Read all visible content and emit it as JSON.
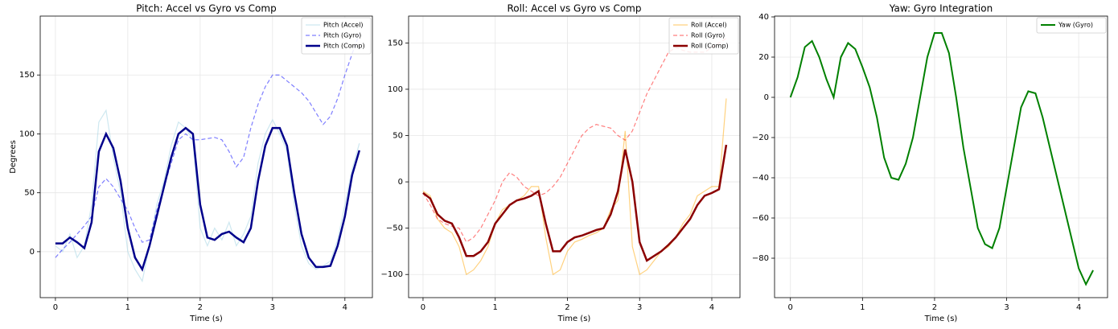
{
  "chart_data": [
    {
      "type": "line",
      "title": "Pitch: Accel vs Gyro vs Comp",
      "xlabel": "Time (s)",
      "ylabel": "Degrees",
      "x": [
        0,
        0.1,
        0.2,
        0.3,
        0.4,
        0.5,
        0.6,
        0.7,
        0.8,
        0.9,
        1.0,
        1.1,
        1.2,
        1.3,
        1.4,
        1.5,
        1.6,
        1.7,
        1.8,
        1.9,
        2.0,
        2.1,
        2.2,
        2.3,
        2.4,
        2.5,
        2.6,
        2.7,
        2.8,
        2.9,
        3.0,
        3.1,
        3.2,
        3.3,
        3.4,
        3.5,
        3.6,
        3.7,
        3.8,
        3.9,
        4.0,
        4.1,
        4.2
      ],
      "series": [
        {
          "name": "Pitch (Accel)",
          "color": "#add8e6",
          "opacity": 0.6,
          "linestyle": "solid",
          "values": [
            5,
            0,
            15,
            -5,
            5,
            40,
            110,
            120,
            80,
            50,
            0,
            -15,
            -25,
            5,
            40,
            60,
            90,
            110,
            105,
            95,
            20,
            5,
            20,
            10,
            25,
            5,
            15,
            30,
            75,
            100,
            112,
            100,
            85,
            40,
            5,
            -10,
            -15,
            -12,
            -8,
            10,
            40,
            70,
            92
          ]
        },
        {
          "name": "Pitch (Gyro)",
          "color": "#0000ff",
          "opacity": 0.5,
          "linestyle": "dashed",
          "values": [
            -5,
            2,
            8,
            15,
            22,
            30,
            55,
            62,
            55,
            45,
            35,
            20,
            8,
            10,
            35,
            55,
            75,
            95,
            100,
            95,
            95,
            96,
            97,
            95,
            85,
            72,
            80,
            105,
            125,
            140,
            150,
            150,
            145,
            140,
            135,
            128,
            118,
            108,
            115,
            130,
            150,
            168,
            185
          ]
        },
        {
          "name": "Pitch (Comp)",
          "color": "#00008b",
          "opacity": 1,
          "linestyle": "solid",
          "values": [
            7,
            7,
            12,
            8,
            3,
            25,
            85,
            100,
            88,
            60,
            20,
            -5,
            -15,
            5,
            30,
            55,
            80,
            100,
            105,
            100,
            40,
            12,
            10,
            15,
            17,
            12,
            8,
            20,
            60,
            90,
            105,
            105,
            90,
            50,
            15,
            -5,
            -13,
            -13,
            -12,
            5,
            30,
            65,
            86
          ]
        }
      ],
      "xlim": [
        -0.21,
        4.38
      ],
      "xticks": [
        0,
        1,
        2,
        3,
        4
      ],
      "ylim": [
        -39,
        200
      ],
      "yticks": [
        0,
        50,
        100,
        150
      ],
      "grid": true,
      "legend": "upper right"
    },
    {
      "type": "line",
      "title": "Roll: Accel vs Gyro vs Comp",
      "xlabel": "Time (s)",
      "x": [
        0,
        0.1,
        0.2,
        0.3,
        0.4,
        0.5,
        0.6,
        0.7,
        0.8,
        0.9,
        1.0,
        1.1,
        1.2,
        1.3,
        1.4,
        1.5,
        1.6,
        1.7,
        1.8,
        1.9,
        2.0,
        2.1,
        2.2,
        2.3,
        2.4,
        2.5,
        2.6,
        2.7,
        2.8,
        2.9,
        3.0,
        3.1,
        3.2,
        3.3,
        3.4,
        3.5,
        3.6,
        3.7,
        3.8,
        3.9,
        4.0,
        4.1,
        4.2
      ],
      "series": [
        {
          "name": "Roll (Accel)",
          "color": "#ffa500",
          "opacity": 0.5,
          "linestyle": "solid",
          "values": [
            -10,
            -15,
            -40,
            -50,
            -55,
            -70,
            -100,
            -95,
            -85,
            -70,
            -45,
            -30,
            -25,
            -20,
            -15,
            -5,
            -5,
            -60,
            -100,
            -95,
            -75,
            -65,
            -62,
            -58,
            -55,
            -50,
            -30,
            -20,
            55,
            -70,
            -100,
            -95,
            -85,
            -75,
            -70,
            -60,
            -45,
            -35,
            -15,
            -10,
            -5,
            -5,
            90
          ]
        },
        {
          "name": "Roll (Gyro)",
          "color": "#ff0000",
          "opacity": 0.5,
          "linestyle": "dashed",
          "values": [
            -12,
            -25,
            -40,
            -45,
            -48,
            -50,
            -65,
            -60,
            -50,
            -35,
            -20,
            0,
            10,
            5,
            -5,
            -10,
            -15,
            -12,
            -5,
            5,
            20,
            35,
            50,
            58,
            62,
            60,
            58,
            50,
            45,
            55,
            75,
            95,
            110,
            125,
            140,
            145,
            142,
            140,
            140,
            140,
            145,
            150,
            155
          ]
        },
        {
          "name": "Roll (Comp)",
          "color": "#8b0000",
          "opacity": 1,
          "linestyle": "solid",
          "values": [
            -12,
            -18,
            -35,
            -42,
            -45,
            -60,
            -80,
            -80,
            -75,
            -65,
            -45,
            -35,
            -25,
            -20,
            -18,
            -15,
            -10,
            -45,
            -75,
            -75,
            -65,
            -60,
            -58,
            -55,
            -52,
            -50,
            -35,
            -10,
            35,
            0,
            -65,
            -85,
            -80,
            -75,
            -68,
            -60,
            -50,
            -40,
            -25,
            -15,
            -12,
            -8,
            40
          ]
        }
      ],
      "xlim": [
        -0.2,
        4.39
      ],
      "xticks": [
        0,
        1,
        2,
        3,
        4
      ],
      "ylim": [
        -125,
        179
      ],
      "yticks": [
        {
          "value": -100,
          "label": "−100"
        },
        {
          "value": -50,
          "label": "−50"
        },
        0,
        50,
        100,
        150
      ],
      "grid": true,
      "legend": "upper right"
    },
    {
      "type": "line",
      "title": "Yaw: Gyro Integration",
      "xlabel": "Time (s)",
      "x": [
        0,
        0.1,
        0.2,
        0.3,
        0.4,
        0.5,
        0.6,
        0.7,
        0.8,
        0.9,
        1.0,
        1.1,
        1.2,
        1.3,
        1.4,
        1.5,
        1.6,
        1.7,
        1.8,
        1.9,
        2.0,
        2.1,
        2.2,
        2.3,
        2.4,
        2.5,
        2.6,
        2.7,
        2.8,
        2.9,
        3.0,
        3.1,
        3.2,
        3.3,
        3.4,
        3.5,
        3.6,
        3.7,
        3.8,
        3.9,
        4.0,
        4.1,
        4.2
      ],
      "series": [
        {
          "name": "Yaw (Gyro)",
          "color": "#008000",
          "opacity": 1,
          "linestyle": "solid",
          "values": [
            0,
            10,
            25,
            28,
            20,
            9,
            0,
            20,
            27,
            24,
            15,
            5,
            -10,
            -30,
            -40,
            -41,
            -33,
            -20,
            0,
            20,
            32,
            32,
            22,
            0,
            -25,
            -45,
            -65,
            -73,
            -75,
            -65,
            -45,
            -25,
            -5,
            3,
            2,
            -10,
            -25,
            -40,
            -55,
            -70,
            -85,
            -93,
            -86
          ]
        }
      ],
      "xlim": [
        -0.22,
        4.4
      ],
      "xticks": [
        0,
        1,
        2,
        3,
        4
      ],
      "ylim": [
        -99.6,
        40.4
      ],
      "yticks": [
        {
          "value": -80,
          "label": "−80"
        },
        {
          "value": -60,
          "label": "−60"
        },
        {
          "value": -40,
          "label": "−40"
        },
        {
          "value": -20,
          "label": "−20"
        },
        0,
        20,
        40
      ],
      "grid": true,
      "legend": "upper right"
    }
  ]
}
